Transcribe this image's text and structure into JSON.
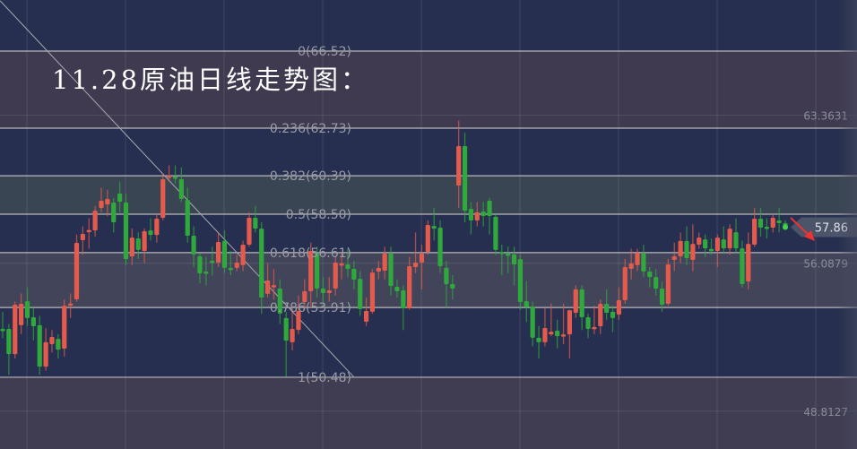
{
  "title": "11.28原油日线走势图：",
  "colors": {
    "background": "#262f4f",
    "up": "#e45a4c",
    "down": "#2fa83c",
    "fib_line": "#b8b8bc",
    "label": "#9a9ba6",
    "arrow": "#ee3333",
    "price_tag": "#4b5468"
  },
  "chart_data": {
    "type": "candlestick",
    "ylim": [
      46.1,
      68.8
    ],
    "y_ticks": [
      "63.3631",
      "56.0879",
      "48.8127"
    ],
    "y_tick_values": [
      63.3631,
      56.0879,
      48.8127
    ],
    "last_price": "57.86",
    "last_price_value": 57.86,
    "grid": true,
    "fib_levels": [
      {
        "label": "0(66.52)",
        "ratio": 0,
        "price": 66.52
      },
      {
        "label": "0.236(62.73)",
        "ratio": 0.236,
        "price": 62.73
      },
      {
        "label": "0.382(60.39)",
        "ratio": 0.382,
        "price": 60.39
      },
      {
        "label": "0.5(58.50)",
        "ratio": 0.5,
        "price": 58.5
      },
      {
        "label": "0.618(56.61)",
        "ratio": 0.618,
        "price": 56.61
      },
      {
        "label": "0.786(53.91)",
        "ratio": 0.786,
        "price": 53.91
      },
      {
        "label": "1(50.48)",
        "ratio": 1,
        "price": 50.48
      }
    ],
    "trendline": {
      "from_price": 69.0,
      "to_price": 50.48
    },
    "ohlc": [
      [
        52.86,
        53.7,
        52.4,
        52.82
      ],
      [
        52.86,
        53.1,
        50.6,
        51.62
      ],
      [
        51.62,
        54.2,
        51.4,
        54.05
      ],
      [
        53.04,
        54.6,
        52.6,
        54.09
      ],
      [
        54.22,
        54.9,
        53.0,
        53.39
      ],
      [
        53.43,
        53.9,
        52.3,
        52.99
      ],
      [
        53.04,
        53.5,
        50.6,
        51.0
      ],
      [
        51.0,
        52.9,
        50.8,
        52.2
      ],
      [
        52.11,
        52.8,
        51.7,
        52.46
      ],
      [
        52.37,
        52.6,
        51.4,
        51.84
      ],
      [
        51.89,
        54.3,
        51.5,
        54.0
      ],
      [
        54.09,
        54.6,
        53.4,
        54.11
      ],
      [
        54.31,
        57.5,
        54.2,
        57.09
      ],
      [
        57.22,
        57.9,
        56.5,
        57.53
      ],
      [
        57.7,
        58.3,
        56.8,
        57.72
      ],
      [
        57.7,
        58.9,
        57.4,
        58.67
      ],
      [
        58.81,
        59.8,
        58.6,
        59.16
      ],
      [
        58.98,
        59.7,
        58.4,
        59.25
      ],
      [
        59.07,
        59.3,
        57.6,
        58.1
      ],
      [
        59.51,
        60.1,
        58.6,
        59.11
      ],
      [
        59.07,
        59.5,
        56.0,
        56.29
      ],
      [
        56.42,
        57.8,
        56.0,
        57.35
      ],
      [
        57.31,
        57.6,
        56.3,
        56.74
      ],
      [
        56.69,
        57.8,
        56.1,
        57.66
      ],
      [
        57.7,
        58.3,
        57.2,
        57.48
      ],
      [
        57.48,
        58.5,
        57.1,
        58.28
      ],
      [
        58.32,
        60.5,
        58.2,
        60.22
      ],
      [
        60.38,
        60.9,
        60.1,
        60.4
      ],
      [
        60.35,
        60.9,
        60.0,
        60.33
      ],
      [
        60.22,
        60.8,
        59.1,
        59.25
      ],
      [
        59.2,
        59.8,
        57.1,
        57.44
      ],
      [
        57.44,
        57.9,
        55.9,
        56.52
      ],
      [
        56.43,
        56.6,
        55.1,
        55.59
      ],
      [
        55.68,
        56.4,
        55.0,
        55.66
      ],
      [
        56.21,
        56.9,
        55.5,
        56.19
      ],
      [
        56.12,
        57.6,
        55.9,
        57.13
      ],
      [
        57.18,
        57.7,
        55.6,
        55.86
      ],
      [
        55.86,
        56.7,
        55.5,
        55.84
      ],
      [
        55.86,
        56.5,
        55.7,
        56.12
      ],
      [
        55.99,
        57.2,
        55.7,
        57.0
      ],
      [
        57.0,
        58.6,
        56.9,
        58.32
      ],
      [
        58.32,
        58.9,
        57.6,
        57.79
      ],
      [
        57.79,
        58.1,
        53.6,
        54.4
      ],
      [
        54.58,
        56.1,
        54.4,
        55.24
      ],
      [
        54.99,
        55.8,
        54.3,
        55.01
      ],
      [
        54.84,
        55.3,
        53.1,
        53.61
      ],
      [
        53.39,
        53.7,
        50.5,
        52.28
      ],
      [
        52.2,
        53.9,
        51.8,
        52.86
      ],
      [
        52.81,
        54.5,
        52.6,
        53.74
      ],
      [
        54.18,
        55.3,
        53.8,
        54.71
      ],
      [
        54.71,
        57.1,
        53.9,
        56.69
      ],
      [
        56.56,
        56.9,
        54.4,
        54.84
      ],
      [
        54.84,
        55.4,
        53.9,
        54.62
      ],
      [
        54.62,
        55.4,
        54.2,
        54.75
      ],
      [
        54.84,
        56.4,
        54.5,
        56.12
      ],
      [
        56.06,
        56.6,
        55.3,
        56.08
      ],
      [
        56.03,
        56.8,
        55.4,
        55.81
      ],
      [
        55.81,
        56.2,
        54.8,
        55.28
      ],
      [
        55.32,
        55.7,
        53.5,
        53.83
      ],
      [
        53.21,
        54.4,
        53.0,
        53.74
      ],
      [
        53.7,
        55.8,
        53.6,
        55.63
      ],
      [
        55.68,
        56.2,
        55.3,
        55.86
      ],
      [
        55.72,
        56.9,
        55.3,
        56.56
      ],
      [
        56.56,
        56.9,
        54.5,
        54.97
      ],
      [
        54.93,
        55.3,
        54.4,
        54.71
      ],
      [
        54.75,
        55.0,
        52.8,
        53.87
      ],
      [
        53.87,
        56.4,
        53.8,
        55.94
      ],
      [
        55.9,
        57.6,
        55.6,
        56.12
      ],
      [
        56.12,
        57.0,
        54.8,
        56.56
      ],
      [
        56.65,
        58.2,
        56.5,
        57.97
      ],
      [
        57.92,
        58.8,
        57.2,
        57.79
      ],
      [
        57.84,
        58.2,
        55.6,
        55.94
      ],
      [
        55.86,
        56.2,
        53.9,
        55.06
      ],
      [
        55.06,
        55.5,
        54.3,
        54.84
      ],
      [
        59.91,
        63.1,
        58.8,
        61.85
      ],
      [
        61.85,
        62.5,
        58.1,
        58.67
      ],
      [
        58.76,
        59.1,
        57.5,
        58.19
      ],
      [
        58.19,
        59.1,
        57.9,
        58.59
      ],
      [
        58.63,
        59.1,
        57.9,
        58.41
      ],
      [
        59.16,
        59.3,
        57.5,
        58.41
      ],
      [
        58.37,
        58.5,
        56.5,
        56.74
      ],
      [
        56.65,
        57.0,
        55.5,
        56.63
      ],
      [
        56.56,
        56.9,
        55.6,
        56.54
      ],
      [
        56.52,
        56.9,
        55.0,
        56.03
      ],
      [
        56.29,
        56.5,
        53.8,
        54.18
      ],
      [
        54.22,
        55.2,
        53.2,
        53.92
      ],
      [
        53.96,
        54.2,
        52.0,
        52.42
      ],
      [
        52.42,
        53.0,
        51.4,
        52.2
      ],
      [
        52.2,
        53.9,
        52.0,
        52.9
      ],
      [
        52.59,
        54.1,
        52.5,
        52.72
      ],
      [
        52.77,
        53.3,
        51.9,
        52.5
      ],
      [
        52.5,
        54.1,
        52.1,
        52.59
      ],
      [
        52.59,
        53.8,
        51.4,
        53.78
      ],
      [
        53.65,
        55.0,
        53.4,
        54.8
      ],
      [
        54.8,
        55.0,
        52.8,
        53.43
      ],
      [
        53.43,
        53.6,
        52.4,
        52.86
      ],
      [
        52.92,
        54.0,
        52.6,
        52.95
      ],
      [
        52.99,
        54.3,
        52.6,
        54.09
      ],
      [
        54.09,
        54.8,
        53.3,
        53.65
      ],
      [
        53.7,
        54.0,
        52.7,
        53.39
      ],
      [
        53.56,
        54.9,
        53.3,
        54.27
      ],
      [
        54.27,
        56.3,
        54.1,
        55.9
      ],
      [
        55.81,
        56.8,
        55.3,
        56.08
      ],
      [
        55.99,
        56.8,
        55.7,
        56.6
      ],
      [
        56.56,
        57.0,
        55.4,
        55.68
      ],
      [
        55.68,
        55.9,
        54.9,
        55.41
      ],
      [
        55.41,
        55.8,
        54.5,
        54.84
      ],
      [
        54.84,
        55.2,
        53.7,
        54.05
      ],
      [
        54.09,
        56.3,
        54.0,
        56.03
      ],
      [
        56.25,
        57.1,
        55.7,
        56.43
      ],
      [
        56.43,
        57.6,
        56.1,
        57.18
      ],
      [
        57.18,
        57.9,
        56.0,
        56.34
      ],
      [
        56.25,
        58.0,
        55.7,
        57.04
      ],
      [
        57.0,
        57.6,
        56.8,
        57.35
      ],
      [
        57.26,
        57.5,
        56.4,
        56.82
      ],
      [
        56.79,
        57.3,
        56.5,
        56.77
      ],
      [
        56.69,
        57.5,
        55.9,
        57.35
      ],
      [
        57.26,
        57.9,
        56.6,
        56.82
      ],
      [
        56.82,
        58.0,
        56.5,
        57.79
      ],
      [
        57.61,
        58.3,
        56.6,
        56.82
      ],
      [
        56.82,
        57.2,
        54.9,
        55.06
      ],
      [
        55.19,
        57.6,
        54.8,
        57.04
      ],
      [
        57.0,
        58.8,
        56.9,
        58.28
      ],
      [
        58.28,
        58.8,
        57.4,
        57.84
      ],
      [
        57.88,
        58.3,
        57.3,
        57.86
      ],
      [
        57.84,
        58.5,
        57.6,
        58.32
      ],
      [
        58.19,
        58.8,
        57.6,
        58.06
      ],
      [
        58.06,
        58.2,
        57.8,
        57.86
      ]
    ]
  }
}
